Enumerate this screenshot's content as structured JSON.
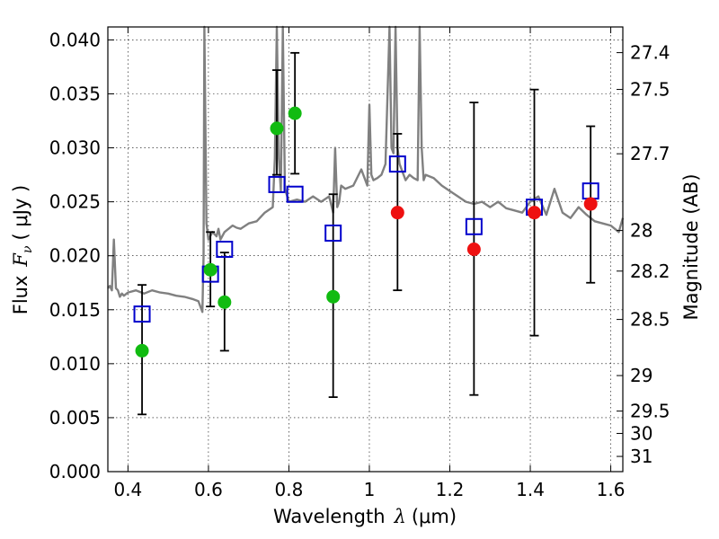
{
  "chart_data": {
    "type": "scatter",
    "xlabel_main": "Wavelength",
    "xlabel_symbol": "λ",
    "xlabel_unit": "(μm)",
    "ylabel_main": "Flux",
    "ylabel_symbol": "F",
    "ylabel_sub": "ν",
    "ylabel_unit": "( μJy )",
    "y2label": "Magnitude (AB)",
    "xlim": [
      0.35,
      1.63
    ],
    "ylim": [
      0.0,
      0.0412
    ],
    "grid": true,
    "x_ticks": [
      0.4,
      0.6,
      0.8,
      1.0,
      1.2,
      1.4,
      1.6
    ],
    "x_tick_labels": [
      "0.4",
      "0.6",
      "0.8",
      "1",
      "1.2",
      "1.4",
      "1.6"
    ],
    "y_ticks": [
      0.0,
      0.005,
      0.01,
      0.015,
      0.02,
      0.025,
      0.03,
      0.035,
      0.04
    ],
    "y_tick_labels": [
      "0.000",
      "0.005",
      "0.010",
      "0.015",
      "0.020",
      "0.025",
      "0.030",
      "0.035",
      "0.040"
    ],
    "y2_ticks": [
      {
        "label": "27.4",
        "flux": 0.03882
      },
      {
        "label": "27.5",
        "flux": 0.03541
      },
      {
        "label": "27.7",
        "flux": 0.02945
      },
      {
        "label": "28",
        "flux": 0.02234
      },
      {
        "label": "28.2",
        "flux": 0.01858
      },
      {
        "label": "28.5",
        "flux": 0.0141
      },
      {
        "label": "29",
        "flux": 0.0089
      },
      {
        "label": "29.5",
        "flux": 0.00561
      },
      {
        "label": "30",
        "flux": 0.00354
      },
      {
        "label": "31",
        "flux": 0.00141
      }
    ],
    "series": [
      {
        "role": "model-spectrum",
        "color": "#808080",
        "x": [
          0.35,
          0.355,
          0.36,
          0.365,
          0.37,
          0.375,
          0.38,
          0.385,
          0.39,
          0.4,
          0.42,
          0.44,
          0.46,
          0.48,
          0.5,
          0.52,
          0.54,
          0.56,
          0.575,
          0.585,
          0.588,
          0.59,
          0.595,
          0.6,
          0.61,
          0.62,
          0.625,
          0.63,
          0.64,
          0.65,
          0.66,
          0.67,
          0.68,
          0.7,
          0.72,
          0.74,
          0.76,
          0.765,
          0.77,
          0.775,
          0.78,
          0.785,
          0.79,
          0.8,
          0.82,
          0.84,
          0.86,
          0.88,
          0.9,
          0.91,
          0.915,
          0.92,
          0.925,
          0.93,
          0.94,
          0.96,
          0.98,
          0.995,
          1.0,
          1.005,
          1.01,
          1.02,
          1.03,
          1.04,
          1.05,
          1.055,
          1.06,
          1.065,
          1.07,
          1.075,
          1.08,
          1.09,
          1.1,
          1.11,
          1.12,
          1.125,
          1.13,
          1.135,
          1.14,
          1.16,
          1.18,
          1.2,
          1.22,
          1.24,
          1.26,
          1.28,
          1.3,
          1.32,
          1.34,
          1.36,
          1.38,
          1.4,
          1.42,
          1.44,
          1.46,
          1.48,
          1.5,
          1.52,
          1.54,
          1.56,
          1.58,
          1.6,
          1.62,
          1.63
        ],
        "y": [
          0.017,
          0.0172,
          0.0168,
          0.0215,
          0.017,
          0.0168,
          0.0162,
          0.0165,
          0.0163,
          0.0166,
          0.0168,
          0.0165,
          0.0168,
          0.0166,
          0.0165,
          0.0163,
          0.0162,
          0.016,
          0.0158,
          0.0148,
          0.02,
          0.0412,
          0.023,
          0.0215,
          0.0222,
          0.0218,
          0.0225,
          0.0215,
          0.0222,
          0.0225,
          0.0228,
          0.0226,
          0.0225,
          0.023,
          0.0232,
          0.024,
          0.0245,
          0.029,
          0.0412,
          0.029,
          0.026,
          0.0412,
          0.0262,
          0.025,
          0.0252,
          0.025,
          0.0255,
          0.025,
          0.0255,
          0.024,
          0.03,
          0.0245,
          0.025,
          0.0265,
          0.0262,
          0.0265,
          0.028,
          0.0265,
          0.034,
          0.0275,
          0.027,
          0.0272,
          0.0275,
          0.0285,
          0.0412,
          0.03,
          0.0295,
          0.0412,
          0.03,
          0.0285,
          0.028,
          0.027,
          0.0275,
          0.0272,
          0.027,
          0.0412,
          0.03,
          0.027,
          0.0275,
          0.0272,
          0.0265,
          0.026,
          0.0255,
          0.025,
          0.0248,
          0.025,
          0.0245,
          0.025,
          0.0244,
          0.0242,
          0.024,
          0.025,
          0.0255,
          0.0238,
          0.0262,
          0.024,
          0.0235,
          0.0245,
          0.0238,
          0.0232,
          0.023,
          0.0228,
          0.0222,
          0.0235
        ]
      },
      {
        "role": "open-squares",
        "color": "#0000cc",
        "x": [
          0.435,
          0.605,
          0.64,
          0.77,
          0.815,
          0.91,
          1.07,
          1.26,
          1.41,
          1.55
        ],
        "y": [
          0.0146,
          0.0183,
          0.0206,
          0.0266,
          0.0257,
          0.0221,
          0.0285,
          0.0227,
          0.0245,
          0.026
        ]
      },
      {
        "role": "green-points",
        "color": "#11bb11",
        "x": [
          0.435,
          0.605,
          0.64,
          0.77,
          0.815,
          0.91
        ],
        "y": [
          0.0112,
          0.0187,
          0.0157,
          0.0318,
          0.0332,
          0.0162
        ],
        "yerr_low": [
          0.0053,
          0.0153,
          0.0112,
          0.0275,
          0.0276,
          0.0069
        ],
        "yerr_high": [
          0.0173,
          0.0222,
          0.0203,
          0.0372,
          0.0388,
          0.0257
        ]
      },
      {
        "role": "red-points",
        "color": "#ee1111",
        "x": [
          1.07,
          1.26,
          1.41,
          1.55
        ],
        "y": [
          0.024,
          0.0206,
          0.024,
          0.0248
        ],
        "yerr_low": [
          0.0168,
          0.0071,
          0.0126,
          0.0175
        ],
        "yerr_high": [
          0.0313,
          0.0342,
          0.0354,
          0.032
        ]
      }
    ]
  }
}
